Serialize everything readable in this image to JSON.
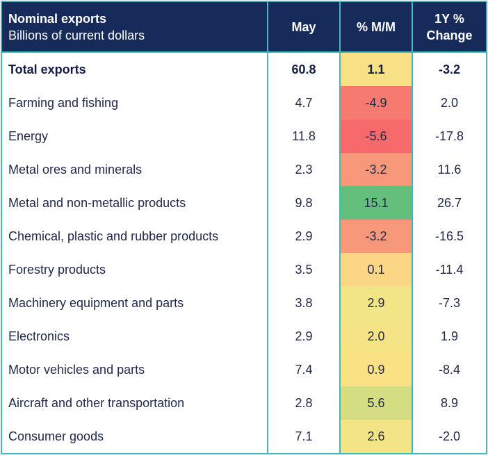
{
  "header": {
    "title": "Nominal exports",
    "subtitle": "Billions of current dollars",
    "col_may": "May",
    "col_mm": "% M/M",
    "col_yoy_line1": "1Y %",
    "col_yoy_line2": "Change"
  },
  "colors": {
    "header_bg": "#162b5a",
    "border": "#3cbcc0",
    "text": "#222a4a"
  },
  "rows": [
    {
      "label": "Total exports",
      "may": "60.8",
      "mm": "1.1",
      "yoy": "-3.2",
      "mm_color": "#f7e184",
      "bold": true
    },
    {
      "label": "Farming and fishing",
      "may": "4.7",
      "mm": "-4.9",
      "yoy": "2.0",
      "mm_color": "#f77a70"
    },
    {
      "label": "Energy",
      "may": "11.8",
      "mm": "-5.6",
      "yoy": "-17.8",
      "mm_color": "#f66a6c"
    },
    {
      "label": "Metal ores and minerals",
      "may": "2.3",
      "mm": "-3.2",
      "yoy": "11.6",
      "mm_color": "#f8987a"
    },
    {
      "label": "Metal and non-metallic products",
      "may": "9.8",
      "mm": "15.1",
      "yoy": "26.7",
      "mm_color": "#63bf7b"
    },
    {
      "label": "Chemical, plastic and rubber products",
      "may": "2.9",
      "mm": "-3.2",
      "yoy": "-16.5",
      "mm_color": "#f8987a"
    },
    {
      "label": "Forestry products",
      "may": "3.5",
      "mm": "0.1",
      "yoy": "-11.4",
      "mm_color": "#fbd785"
    },
    {
      "label": "Machinery equipment and parts",
      "may": "3.8",
      "mm": "2.9",
      "yoy": "-7.3",
      "mm_color": "#f2e586"
    },
    {
      "label": "Electronics",
      "may": "2.9",
      "mm": "2.0",
      "yoy": "1.9",
      "mm_color": "#f5e486"
    },
    {
      "label": "Motor vehicles and parts",
      "may": "7.4",
      "mm": "0.9",
      "yoy": "-8.4",
      "mm_color": "#f9e184"
    },
    {
      "label": "Aircraft and other transportation",
      "may": "2.8",
      "mm": "5.6",
      "yoy": "8.9",
      "mm_color": "#d4dd82"
    },
    {
      "label": "Consumer goods",
      "may": "7.1",
      "mm": "2.6",
      "yoy": "-2.0",
      "mm_color": "#f3e586"
    }
  ],
  "chart_data": {
    "type": "table",
    "title": "Nominal exports",
    "subtitle": "Billions of current dollars",
    "columns": [
      "May",
      "% M/M",
      "1Y % Change"
    ],
    "categories": [
      "Total exports",
      "Farming and fishing",
      "Energy",
      "Metal ores and minerals",
      "Metal and non-metallic products",
      "Chemical, plastic and rubber products",
      "Forestry products",
      "Machinery equipment and parts",
      "Electronics",
      "Motor vehicles and parts",
      "Aircraft and other transportation",
      "Consumer goods"
    ],
    "series": [
      {
        "name": "May",
        "values": [
          60.8,
          4.7,
          11.8,
          2.3,
          9.8,
          2.9,
          3.5,
          3.8,
          2.9,
          7.4,
          2.8,
          7.1
        ]
      },
      {
        "name": "% M/M",
        "values": [
          1.1,
          -4.9,
          -5.6,
          -3.2,
          15.1,
          -3.2,
          0.1,
          2.9,
          2.0,
          0.9,
          5.6,
          2.6
        ]
      },
      {
        "name": "1Y % Change",
        "values": [
          -3.2,
          2.0,
          -17.8,
          11.6,
          26.7,
          -16.5,
          -11.4,
          -7.3,
          1.9,
          -8.4,
          8.9,
          -2.0
        ]
      }
    ]
  }
}
